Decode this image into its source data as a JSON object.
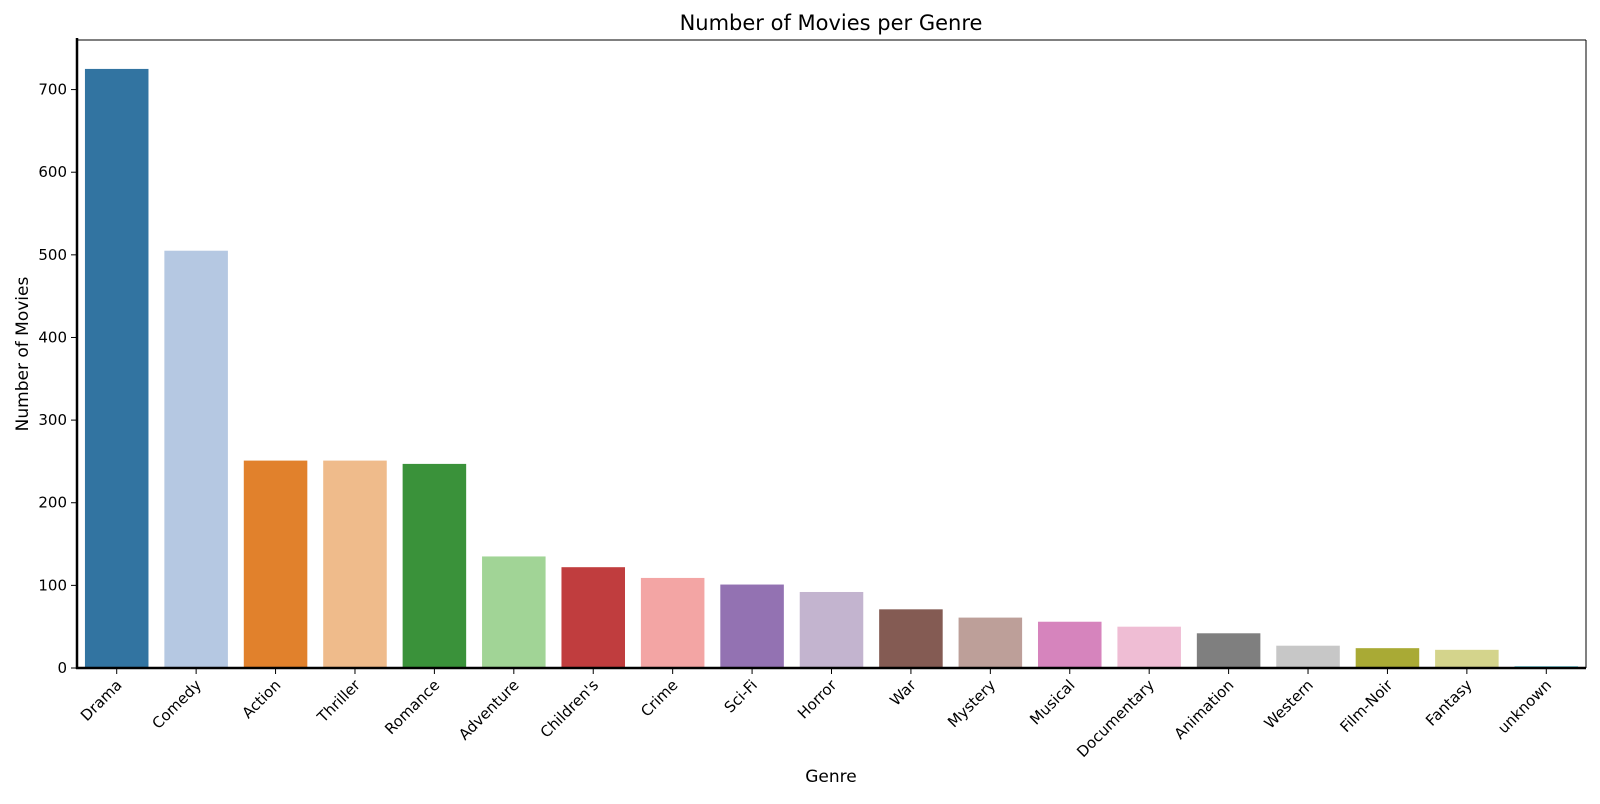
{
  "chart_data": {
    "type": "bar",
    "title": "Number of Movies per Genre",
    "xlabel": "Genre",
    "ylabel": "Number of Movies",
    "ylim": [
      0,
      760
    ],
    "yticks": [
      0,
      100,
      200,
      300,
      400,
      500,
      600,
      700
    ],
    "grid": false,
    "legend": "none",
    "categories": [
      "Drama",
      "Comedy",
      "Action",
      "Thriller",
      "Romance",
      "Adventure",
      "Children's",
      "Crime",
      "Sci-Fi",
      "Horror",
      "War",
      "Mystery",
      "Musical",
      "Documentary",
      "Animation",
      "Western",
      "Film-Noir",
      "Fantasy",
      "unknown"
    ],
    "values": [
      725,
      505,
      251,
      251,
      247,
      135,
      122,
      109,
      101,
      92,
      71,
      61,
      56,
      50,
      42,
      27,
      24,
      22,
      2
    ],
    "colors": [
      "#3274a1",
      "#b5c8e2",
      "#e1812c",
      "#efbb8b",
      "#3a923a",
      "#a1d496",
      "#c03d3e",
      "#f3a5a4",
      "#9372b2",
      "#c3b4cf",
      "#845b53",
      "#bd9f99",
      "#d684bd",
      "#efbdd4",
      "#7f7f7f",
      "#c7c7c7",
      "#a9aa35",
      "#d4d48c",
      "#2ab0c5"
    ]
  }
}
